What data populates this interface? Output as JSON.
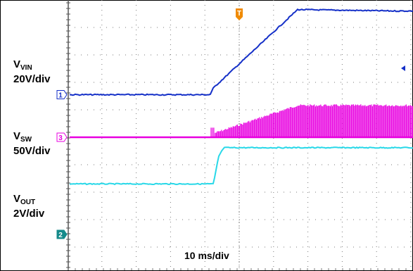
{
  "chart_data": {
    "type": "line",
    "timebase": "10 ms/div",
    "x_range_ms": [
      -40,
      45
    ],
    "grid": true,
    "series": [
      {
        "name": "V_VIN",
        "marker": "1",
        "scale": "20V/div",
        "color": "#1530c8",
        "x_ms": [
          -40,
          -8.5,
          -7.5,
          17,
          45
        ],
        "y_div": [
          1.55,
          1.55,
          1.8,
          4.65,
          4.6
        ]
      },
      {
        "name": "V_SW",
        "marker": "3",
        "scale": "50V/div",
        "color": "#e800e0",
        "envelope_x_ms": [
          -7,
          17,
          45
        ],
        "envelope_y_div": [
          0.2,
          1.2,
          1.2
        ],
        "baseline_div": 0,
        "switching_start_ms": -7
      },
      {
        "name": "V_OUT",
        "marker": "2",
        "scale": "2V/div",
        "color": "#28d8e8",
        "x_ms": [
          -40,
          -7.5,
          -6,
          -4.5,
          45
        ],
        "y_div": [
          -1.7,
          -1.7,
          -0.7,
          -0.38,
          -0.38
        ]
      }
    ]
  },
  "labels": {
    "vin": {
      "main": "V",
      "sub": "VIN",
      "scale": "20V/div"
    },
    "vsw": {
      "main": "V",
      "sub": "SW",
      "scale": "50V/div"
    },
    "vout": {
      "main": "V",
      "sub": "OUT",
      "scale": "2V/div"
    },
    "timebase": "10 ms/div",
    "trigger_marker": "T",
    "ch1_marker": "1",
    "ch2_marker": "2",
    "ch3_marker": "3"
  },
  "colors": {
    "vin": "#1530c8",
    "vsw": "#e800e0",
    "vout": "#28d8e8",
    "trigger": "#f08a00",
    "ch2_marker_bg": "#158a8a",
    "grid": "#7a7a7a",
    "axis": "#555555"
  }
}
